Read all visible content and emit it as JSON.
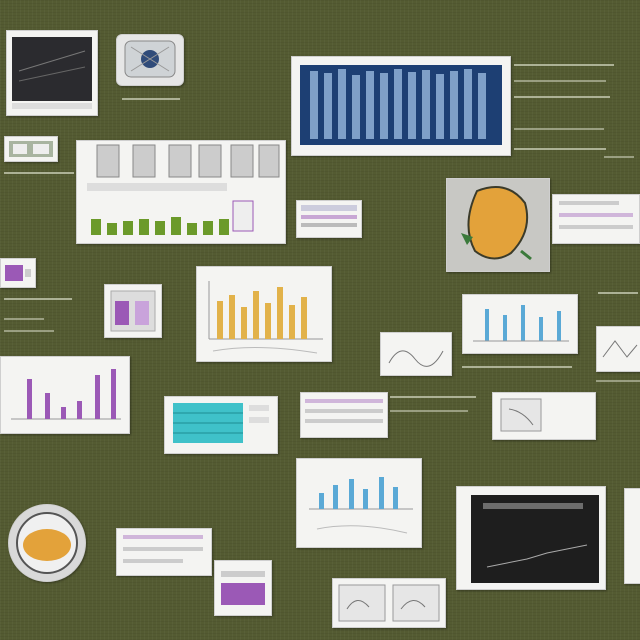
{
  "scene": {
    "background": "#545b32",
    "card_fill": "#f4f4f2",
    "accents": {
      "purple": "#9b59b6",
      "gold": "#e2b24a",
      "teal": "#3fc1c9",
      "blue": "#5aa9d6",
      "navy": "#1d3f73",
      "green": "#6b9a2a",
      "orange": "#e3a23a"
    },
    "icons": [
      "chart-thumbnail-icon",
      "device-icon",
      "map-blob-icon",
      "bowl-icon"
    ]
  }
}
